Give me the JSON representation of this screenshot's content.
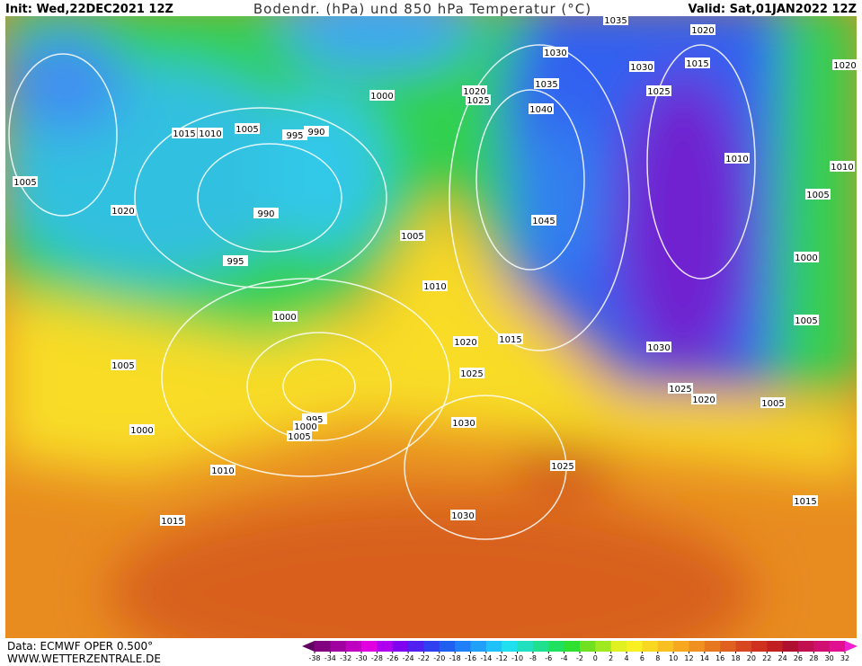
{
  "header": {
    "init": "Init: Wed,22DEC2021 12Z",
    "title": "Bodendr. (hPa) und 850 hPa Temperatur (°C)",
    "valid": "Valid: Sat,01JAN2022 12Z"
  },
  "footer": {
    "source": "Data: ECMWF OPER 0.500°",
    "site": "WWW.WETTERZENTRALE.DE"
  },
  "isobar_labels": [
    1035,
    1020,
    1030,
    1030,
    1015,
    1020,
    1000,
    1035,
    1025,
    1020,
    1025,
    1040,
    1015,
    1010,
    1005,
    995,
    990,
    1010,
    1010,
    1005,
    1005,
    1020,
    990,
    1045,
    1005,
    995,
    1000,
    1010,
    1000,
    1005,
    1020,
    1015,
    1030,
    1005,
    1025,
    1025,
    1020,
    1005,
    995,
    1030,
    1000,
    1000,
    1005,
    1025,
    1010,
    1015,
    1030,
    1015
  ],
  "colorbar": {
    "ticks": [
      -38,
      -34,
      -32,
      -30,
      -28,
      -26,
      -24,
      -22,
      -20,
      -18,
      -16,
      -14,
      -12,
      -10,
      -8,
      -6,
      -4,
      -2,
      0,
      2,
      4,
      6,
      8,
      10,
      12,
      14,
      16,
      18,
      20,
      22,
      24,
      26,
      28,
      30,
      32
    ],
    "colors": [
      "#600060",
      "#800080",
      "#a000a0",
      "#c000c0",
      "#e000e0",
      "#b000f0",
      "#8000f0",
      "#5020f0",
      "#3040f0",
      "#2060f0",
      "#2080f8",
      "#20a0f8",
      "#20c0f8",
      "#20e0f0",
      "#20e0c0",
      "#20e090",
      "#20e060",
      "#30e030",
      "#70e020",
      "#a0e820",
      "#e0f020",
      "#f8f020",
      "#f8d820",
      "#f8c020",
      "#f8a820",
      "#f09020",
      "#e87820",
      "#e06020",
      "#d84820",
      "#d03020",
      "#c02020",
      "#b01030",
      "#c01050",
      "#d01070",
      "#e01090",
      "#f020d0"
    ]
  }
}
